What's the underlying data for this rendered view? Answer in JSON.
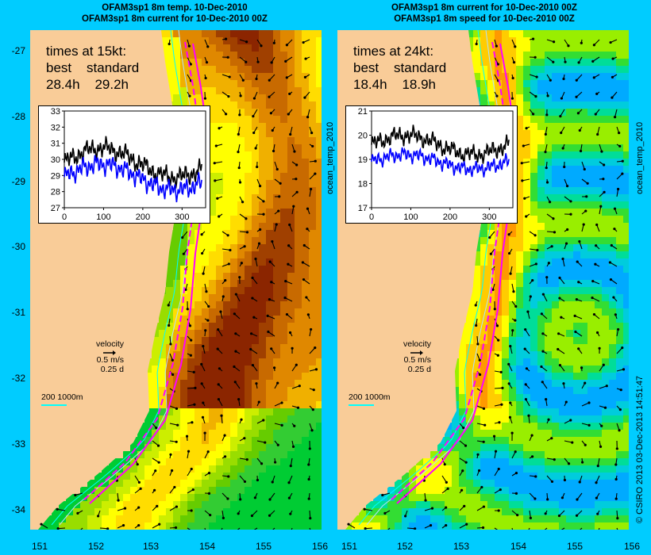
{
  "left_panel": {
    "title_line1": "OFAM3sp1 8m temp. 10-Dec-2010",
    "title_line2": "OFAM3sp1 8m current for 10-Dec-2010 00Z",
    "times_heading": "times at 15kt:",
    "col_best": "best",
    "col_standard": "standard",
    "best_value": "28.4h",
    "standard_value": "29.2h",
    "velocity_label": "velocity",
    "velocity_speed": "0.5 m/s",
    "velocity_duration": "0.25 d",
    "isobath_label": "200  1000m",
    "inset": {
      "y_ticks": [
        "33",
        "32",
        "31",
        "30",
        "29",
        "28",
        "27"
      ],
      "x_ticks": [
        "0",
        "100",
        "200",
        "300"
      ],
      "ylim": [
        27,
        33
      ],
      "xlim": [
        0,
        360
      ]
    }
  },
  "right_panel": {
    "title_line1": "OFAM3sp1 8m current for 10-Dec-2010 00Z",
    "title_line2": "OFAM3sp1 8m speed for 10-Dec-2010 00Z",
    "times_heading": "times at 24kt:",
    "col_best": "best",
    "col_standard": "standard",
    "best_value": "18.4h",
    "standard_value": "18.9h",
    "velocity_label": "velocity",
    "velocity_speed": "0.5 m/s",
    "velocity_duration": "0.25 d",
    "isobath_label": "200  1000m",
    "inset": {
      "y_ticks": [
        "21",
        "20",
        "19",
        "18",
        "17"
      ],
      "x_ticks": [
        "0",
        "100",
        "200",
        "300"
      ],
      "ylim": [
        17,
        21
      ],
      "xlim": [
        0,
        360
      ]
    }
  },
  "side_labels": {
    "middle_axis": "ocean_temp_2010",
    "right_axis": "ocean_temp_2010",
    "copyright": "© CSIRO 2013   03-Dec-2013 14:51:47"
  },
  "lat_ticks": [
    "-27",
    "-28",
    "-29",
    "-30",
    "-31",
    "-32",
    "-33",
    "-34"
  ],
  "lon_ticks": [
    "151",
    "152",
    "153",
    "154",
    "155",
    "156"
  ],
  "colors": {
    "background": "#00ccff",
    "land": "#f9cc98",
    "route_best": "#ff00ff",
    "route_standard": "#ff00ff",
    "series_black": "#000000",
    "series_blue": "#0000ff",
    "isobath": "#00ffff"
  }
}
